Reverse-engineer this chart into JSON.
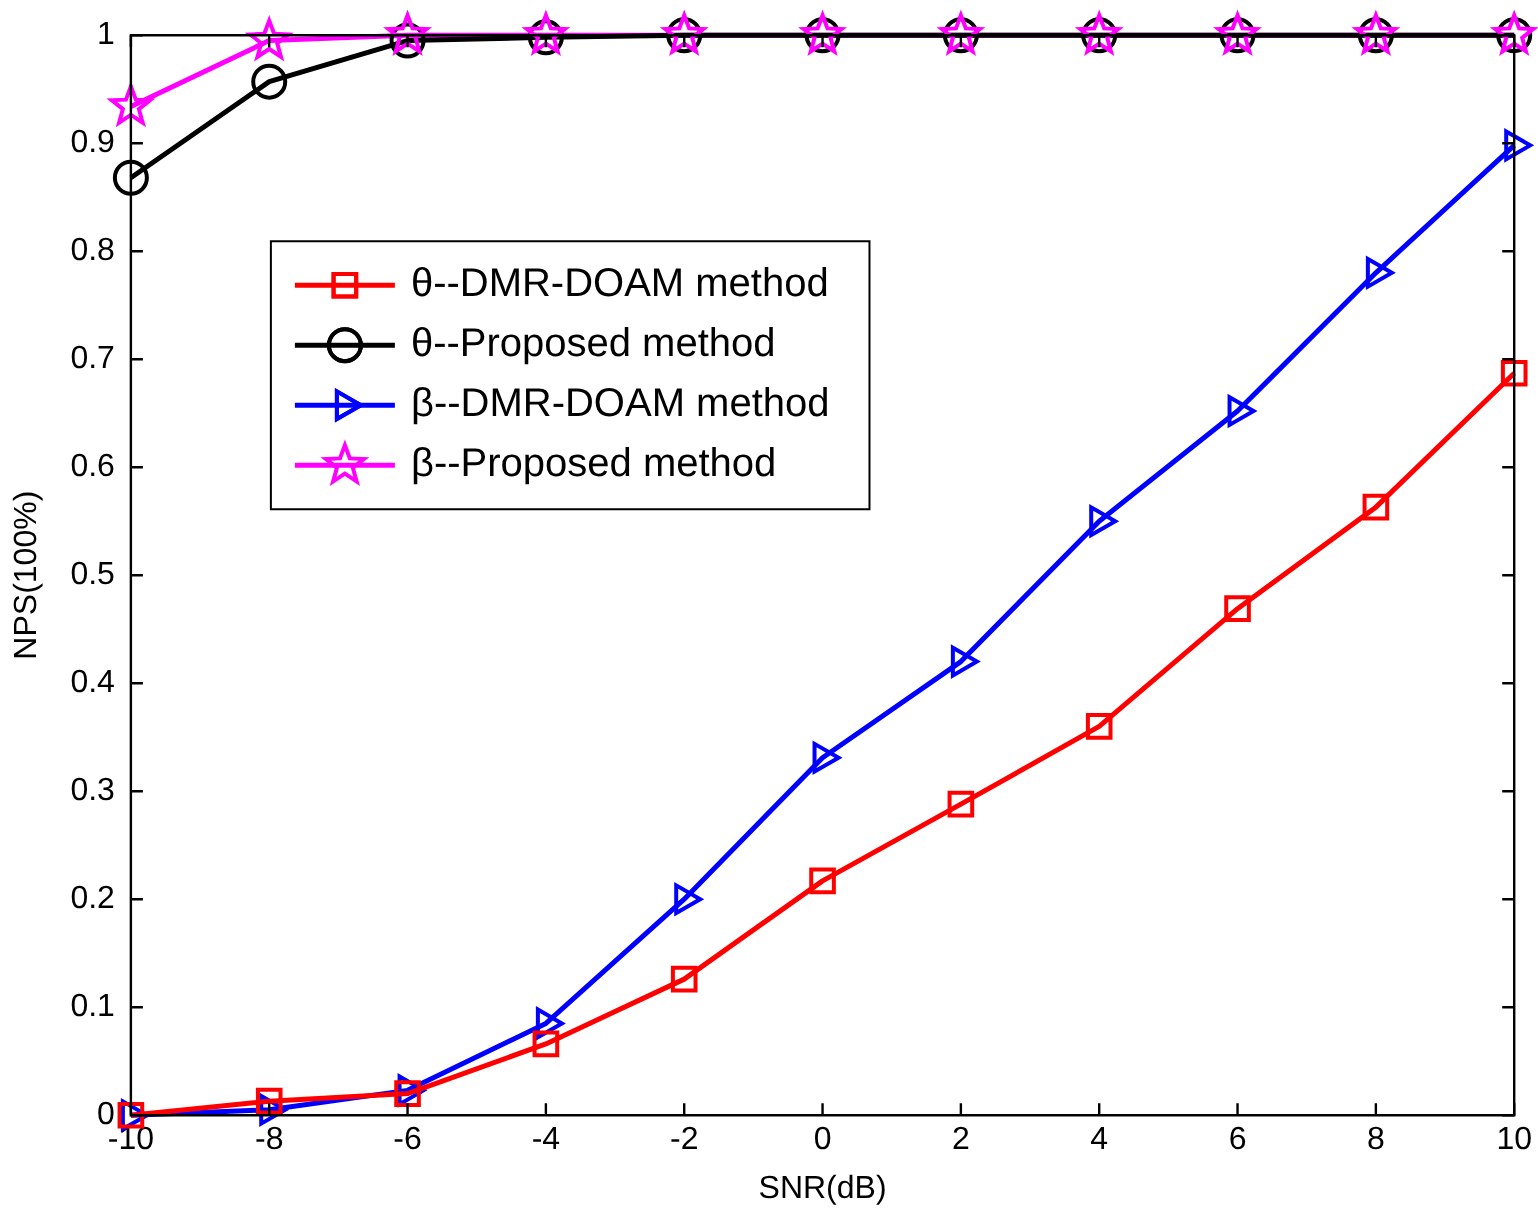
{
  "chart_data": {
    "type": "line",
    "xlabel": "SNR(dB)",
    "ylabel": "NPS(100%)",
    "x": [
      -10,
      -8,
      -6,
      -4,
      -2,
      0,
      2,
      4,
      6,
      8,
      10
    ],
    "xlim": [
      -10,
      10
    ],
    "xticks": [
      -10,
      -8,
      -6,
      -4,
      -2,
      0,
      2,
      4,
      6,
      8,
      10
    ],
    "ylim": [
      0,
      1
    ],
    "yticks": [
      0,
      0.1,
      0.2,
      0.3,
      0.4,
      0.5,
      0.6,
      0.7,
      0.8,
      0.9,
      1
    ],
    "grid": false,
    "legend": "top left",
    "line_style": "solid",
    "series": [
      {
        "name": "θ--DMR-DOAM method",
        "color": "#ff0000",
        "marker": "square",
        "values": [
          0,
          0.013,
          0.02,
          0.066,
          0.126,
          0.217,
          0.288,
          0.36,
          0.469,
          0.563,
          0.687
        ]
      },
      {
        "name": "θ--Proposed method",
        "color": "#000000",
        "marker": "circle",
        "values": [
          0.868,
          0.957,
          0.995,
          0.998,
          1,
          1,
          1,
          1,
          1,
          1,
          1
        ]
      },
      {
        "name": "β--DMR-DOAM method",
        "color": "#0000ff",
        "marker": "triangle",
        "values": [
          0,
          0.005,
          0.023,
          0.085,
          0.2,
          0.331,
          0.42,
          0.55,
          0.652,
          0.78,
          0.898
        ]
      },
      {
        "name": "β--Proposed method",
        "color": "#ff00ff",
        "marker": "star",
        "values": [
          0.934,
          0.995,
          1,
          1,
          1,
          1,
          1,
          1,
          1,
          1,
          1
        ]
      }
    ]
  }
}
